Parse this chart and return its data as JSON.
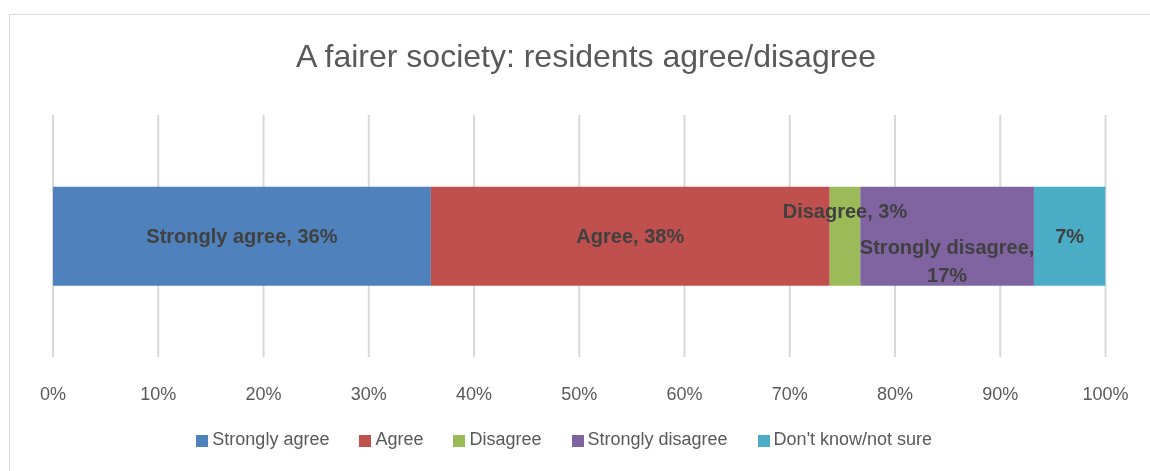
{
  "chart_data": {
    "type": "bar",
    "orientation": "horizontal",
    "stacked": true,
    "title": "A fairer society: residents agree/disagree",
    "categories": [
      null
    ],
    "series": [
      {
        "name": "Strongly agree",
        "color": "#4f81bd",
        "values": [
          35.9
        ],
        "value_labels": [
          "Strongly agree, 36%"
        ]
      },
      {
        "name": "Agree",
        "color": "#c0504d",
        "values": [
          37.9
        ],
        "value_labels": [
          "Agree, 38%"
        ]
      },
      {
        "name": "Disagree",
        "color": "#9bbb59",
        "values": [
          2.9
        ],
        "value_labels": [
          "Disagree, 3%"
        ]
      },
      {
        "name": "Strongly disagree",
        "color": "#8064a2",
        "values": [
          16.5
        ],
        "value_labels": [
          "Strongly disagree, 17%"
        ]
      },
      {
        "name": "Don't know/not sure",
        "color": "#4bacc6",
        "values": [
          6.8
        ],
        "value_labels": [
          "7%"
        ]
      }
    ],
    "xlim": [
      0,
      100
    ],
    "xticks": [
      {
        "value": 0,
        "label": "0%"
      },
      {
        "value": 10,
        "label": "10%"
      },
      {
        "value": 20,
        "label": "20%"
      },
      {
        "value": 30,
        "label": "30%"
      },
      {
        "value": 40,
        "label": "40%"
      },
      {
        "value": 50,
        "label": "50%"
      },
      {
        "value": 60,
        "label": "60%"
      },
      {
        "value": 70,
        "label": "70%"
      },
      {
        "value": 80,
        "label": "80%"
      },
      {
        "value": 90,
        "label": "90%"
      },
      {
        "value": 100,
        "label": "100%"
      }
    ],
    "grid": "x",
    "legend": "bottom"
  }
}
